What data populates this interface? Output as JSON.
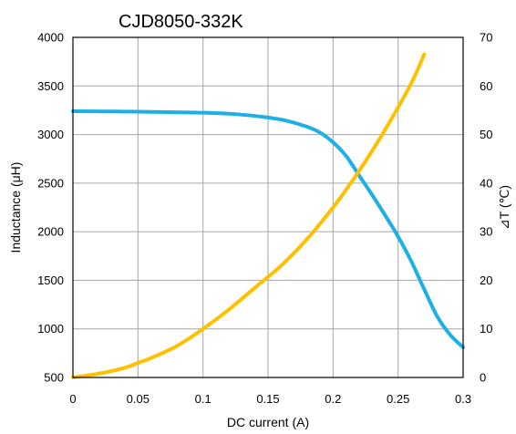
{
  "chart_data": {
    "type": "line",
    "title": "CJD8050-332K",
    "xlabel": "DC current (A)",
    "ylabel": "Inductance (μH)",
    "y2label": "⊿T (℃)",
    "xlim": [
      0,
      0.3
    ],
    "ylim": [
      500,
      4000
    ],
    "y2lim": [
      0,
      70
    ],
    "x_ticks": [
      0,
      0.05,
      0.1,
      0.15,
      0.2,
      0.25,
      0.3
    ],
    "x_tick_labels": [
      "0",
      "0.05",
      "0.1",
      "0.15",
      "0.2",
      "0.25",
      "0.3"
    ],
    "y_ticks": [
      500,
      1000,
      1500,
      2000,
      2500,
      3000,
      3500,
      4000
    ],
    "y_tick_labels": [
      "500",
      "1000",
      "1500",
      "2000",
      "2500",
      "3000",
      "3500",
      "4000"
    ],
    "y2_ticks": [
      0,
      10,
      20,
      30,
      40,
      50,
      60,
      70
    ],
    "y2_tick_labels": [
      "0",
      "10",
      "20",
      "30",
      "40",
      "50",
      "60",
      "70"
    ],
    "grid": true,
    "series": [
      {
        "axis": "left",
        "color": "#1cb0e6",
        "x": [
          0,
          0.025,
          0.05,
          0.075,
          0.1,
          0.125,
          0.15,
          0.165,
          0.18,
          0.19,
          0.2,
          0.21,
          0.22,
          0.23,
          0.24,
          0.25,
          0.26,
          0.27,
          0.28,
          0.29,
          0.3
        ],
        "y": [
          3240,
          3238,
          3235,
          3230,
          3225,
          3210,
          3175,
          3140,
          3080,
          3020,
          2920,
          2780,
          2580,
          2380,
          2170,
          1950,
          1700,
          1410,
          1130,
          940,
          810
        ]
      },
      {
        "axis": "right",
        "color": "#ffc000",
        "x": [
          0,
          0.02,
          0.04,
          0.05,
          0.06,
          0.08,
          0.1,
          0.12,
          0.14,
          0.16,
          0.18,
          0.2,
          0.22,
          0.24,
          0.26,
          0.27
        ],
        "y": [
          0,
          0.8,
          2,
          3,
          4,
          6.5,
          10,
          14,
          18.5,
          23,
          28.5,
          35,
          42.5,
          51,
          60.5,
          66.5
        ]
      }
    ]
  }
}
